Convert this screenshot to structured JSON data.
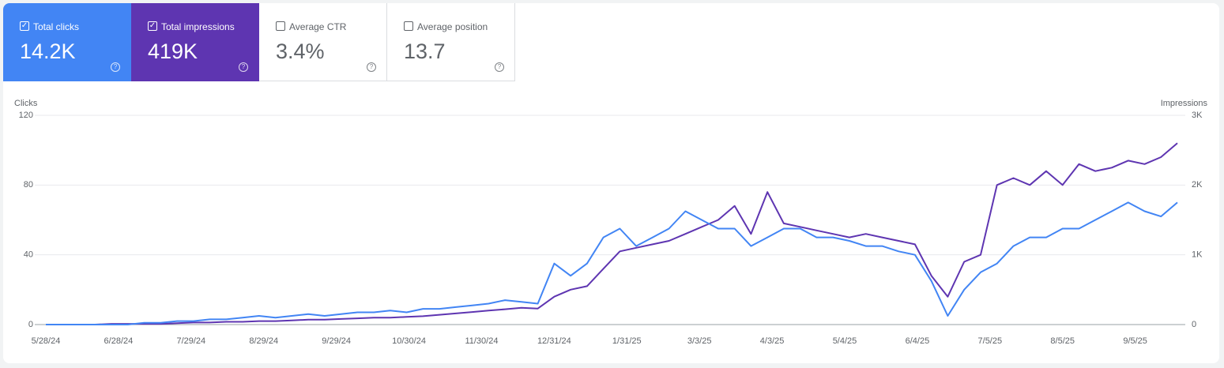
{
  "metrics": [
    {
      "label": "Total clicks",
      "value": "14.2K",
      "selected": true,
      "color": "#4285f4"
    },
    {
      "label": "Total impressions",
      "value": "419K",
      "selected": true,
      "color": "#5e35b1"
    },
    {
      "label": "Average CTR",
      "value": "3.4%",
      "selected": false
    },
    {
      "label": "Average position",
      "value": "13.7",
      "selected": false
    }
  ],
  "chart_data": {
    "type": "line",
    "y_label": "Clicks",
    "y2_label": "Impressions",
    "x": [
      "2024-05-28",
      "2024-06-04",
      "2024-06-11",
      "2024-06-18",
      "2024-06-25",
      "2024-07-02",
      "2024-07-09",
      "2024-07-16",
      "2024-07-23",
      "2024-07-30",
      "2024-08-06",
      "2024-08-13",
      "2024-08-20",
      "2024-08-27",
      "2024-09-03",
      "2024-09-10",
      "2024-09-17",
      "2024-09-24",
      "2024-10-01",
      "2024-10-08",
      "2024-10-15",
      "2024-10-22",
      "2024-10-29",
      "2024-11-05",
      "2024-11-12",
      "2024-11-19",
      "2024-11-26",
      "2024-12-03",
      "2024-12-10",
      "2024-12-17",
      "2024-12-24",
      "2024-12-31",
      "2025-01-07",
      "2025-01-14",
      "2025-01-21",
      "2025-01-28",
      "2025-02-04",
      "2025-02-11",
      "2025-02-18",
      "2025-02-25",
      "2025-03-04",
      "2025-03-11",
      "2025-03-18",
      "2025-03-25",
      "2025-04-01",
      "2025-04-08",
      "2025-04-15",
      "2025-04-22",
      "2025-04-29",
      "2025-05-06",
      "2025-05-13",
      "2025-05-20",
      "2025-05-27",
      "2025-06-03",
      "2025-06-10",
      "2025-06-17",
      "2025-06-24",
      "2025-07-01",
      "2025-07-08",
      "2025-07-15",
      "2025-07-22",
      "2025-07-29",
      "2025-08-05",
      "2025-08-12",
      "2025-08-19",
      "2025-08-26",
      "2025-09-02",
      "2025-09-09",
      "2025-09-16",
      "2025-09-23"
    ],
    "xlim": [
      "2024-05-28",
      "2025-09-23"
    ],
    "xticks": [
      {
        "value": "2024-05-28",
        "label": "5/28/24"
      },
      {
        "value": "2024-06-28",
        "label": "6/28/24"
      },
      {
        "value": "2024-07-29",
        "label": "7/29/24"
      },
      {
        "value": "2024-08-29",
        "label": "8/29/24"
      },
      {
        "value": "2024-09-29",
        "label": "9/29/24"
      },
      {
        "value": "2024-10-30",
        "label": "10/30/24"
      },
      {
        "value": "2024-11-30",
        "label": "11/30/24"
      },
      {
        "value": "2024-12-31",
        "label": "12/31/24"
      },
      {
        "value": "2025-01-31",
        "label": "1/31/25"
      },
      {
        "value": "2025-03-03",
        "label": "3/3/25"
      },
      {
        "value": "2025-04-03",
        "label": "4/3/25"
      },
      {
        "value": "2025-05-04",
        "label": "5/4/25"
      },
      {
        "value": "2025-06-04",
        "label": "6/4/25"
      },
      {
        "value": "2025-07-05",
        "label": "7/5/25"
      },
      {
        "value": "2025-08-05",
        "label": "8/5/25"
      },
      {
        "value": "2025-09-05",
        "label": "9/5/25"
      }
    ],
    "ylim": [
      0,
      120
    ],
    "yticks": [
      0,
      40,
      80,
      120
    ],
    "y2lim": [
      0,
      3000
    ],
    "y2ticks": [
      0,
      {
        "value": 1000,
        "label": "1K"
      },
      {
        "value": 2000,
        "label": "2K"
      },
      {
        "value": 3000,
        "label": "3K"
      }
    ],
    "grid": true,
    "series": [
      {
        "name": "Total impressions",
        "color": "#5e35b1",
        "axis": "y2",
        "values": [
          0,
          0,
          0,
          0,
          10,
          10,
          10,
          10,
          20,
          30,
          30,
          40,
          40,
          50,
          50,
          60,
          70,
          70,
          80,
          90,
          100,
          100,
          110,
          120,
          140,
          160,
          180,
          200,
          220,
          240,
          230,
          400,
          500,
          550,
          800,
          1050,
          1100,
          1150,
          1200,
          1300,
          1400,
          1500,
          1700,
          1300,
          1900,
          1450,
          1400,
          1350,
          1300,
          1250,
          1300,
          1250,
          1200,
          1150,
          700,
          400,
          900,
          1000,
          2000,
          2100,
          2000,
          2200,
          2000,
          2300,
          2200,
          2250,
          2350,
          2300,
          2400,
          2600
        ]
      },
      {
        "name": "Total clicks",
        "color": "#4285f4",
        "values": [
          0,
          0,
          0,
          0,
          0,
          0,
          1,
          1,
          2,
          2,
          3,
          3,
          4,
          5,
          4,
          5,
          6,
          5,
          6,
          7,
          7,
          8,
          7,
          9,
          9,
          10,
          11,
          12,
          14,
          13,
          12,
          35,
          28,
          35,
          50,
          55,
          45,
          50,
          55,
          65,
          60,
          55,
          55,
          45,
          50,
          55,
          55,
          50,
          50,
          48,
          45,
          45,
          42,
          40,
          25,
          5,
          20,
          30,
          35,
          45,
          50,
          50,
          55,
          55,
          60,
          65,
          70,
          65,
          62,
          70
        ]
      }
    ]
  }
}
